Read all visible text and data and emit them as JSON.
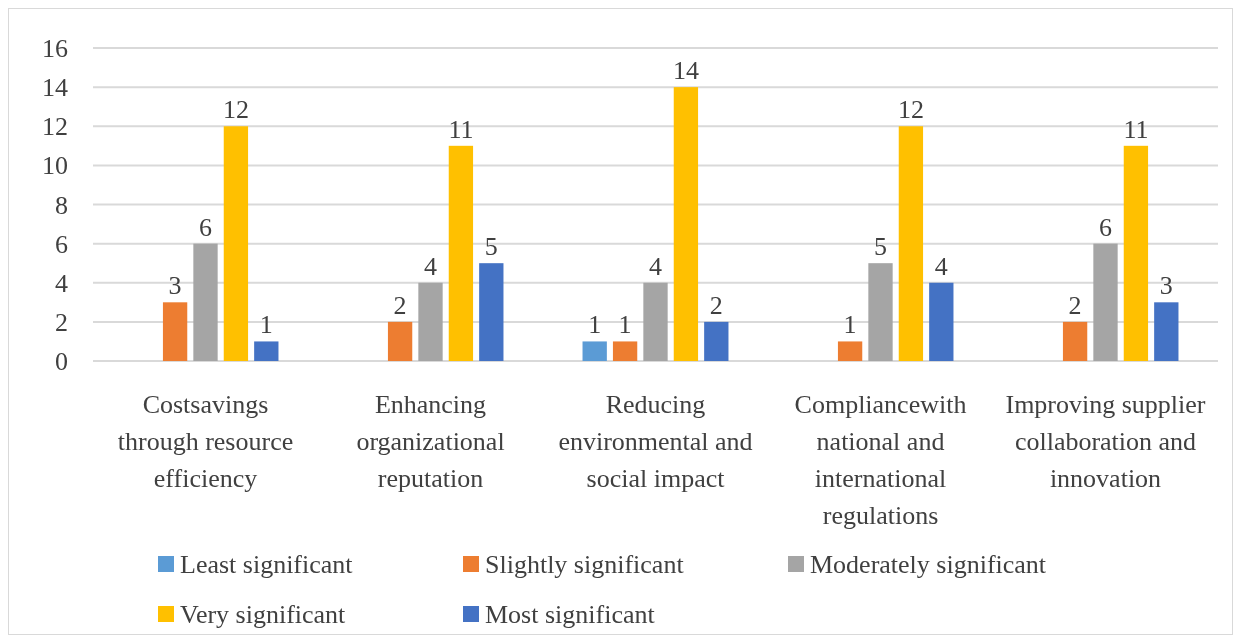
{
  "chart_data": {
    "type": "bar",
    "categories": [
      "Costsavings through resource efficiency",
      "Enhancing organizational reputation",
      "Reducing environmental and social impact",
      "Compliancewith national and international regulations",
      "Improving supplier collaboration and innovation"
    ],
    "series": [
      {
        "name": "Least significant",
        "color": "#5b9bd5",
        "values": [
          null,
          null,
          1,
          null,
          null
        ]
      },
      {
        "name": "Slightly significant",
        "color": "#ed7d31",
        "values": [
          3,
          2,
          1,
          1,
          2
        ]
      },
      {
        "name": "Moderately significant",
        "color": "#a5a5a5",
        "values": [
          6,
          4,
          4,
          5,
          6
        ]
      },
      {
        "name": "Very significant",
        "color": "#ffc000",
        "values": [
          12,
          11,
          14,
          12,
          11
        ]
      },
      {
        "name": "Most significant",
        "color": "#4472c4",
        "values": [
          1,
          5,
          2,
          4,
          3
        ]
      }
    ],
    "ylim": [
      0,
      16
    ],
    "yticks": [
      0,
      2,
      4,
      6,
      8,
      10,
      12,
      14,
      16
    ],
    "grid": "y",
    "data_labels": true,
    "legend": "bottom"
  }
}
